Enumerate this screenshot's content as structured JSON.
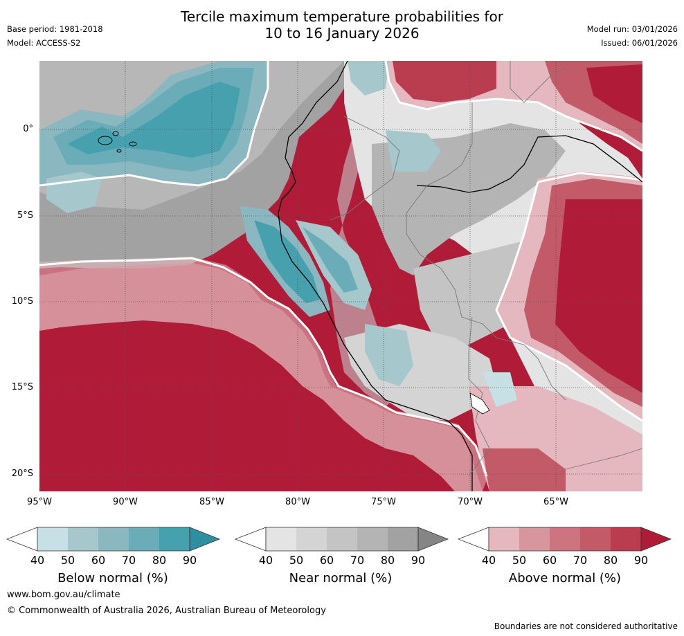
{
  "header": {
    "title_line1": "Tercile maximum temperature probabilities for",
    "title_line2": "10 to 16 January 2026",
    "base_period": "Base period: 1981-2018",
    "model": "Model: ACCESS-S2",
    "model_run": "Model run: 03/01/2026",
    "issued": "Issued: 06/01/2026"
  },
  "axes": {
    "lat_labels": [
      "0°",
      "5°S",
      "10°S",
      "15°S",
      "20°S"
    ],
    "lon_labels": [
      "95°W",
      "90°W",
      "85°W",
      "80°W",
      "75°W",
      "70°W",
      "65°W"
    ]
  },
  "legends": [
    {
      "title": "Below normal (%)",
      "ticks": [
        "40",
        "50",
        "60",
        "70",
        "80",
        "90"
      ],
      "colors": [
        "#c6e0e5",
        "#a6c8cc",
        "#8ab7c0",
        "#6aadb8",
        "#46a0ae",
        "#2f8fa2"
      ]
    },
    {
      "title": "Near normal (%)",
      "ticks": [
        "40",
        "50",
        "60",
        "70",
        "80",
        "90"
      ],
      "colors": [
        "#e4e4e4",
        "#d4d4d4",
        "#c4c4c4",
        "#b4b4b4",
        "#a2a2a2",
        "#858585"
      ]
    },
    {
      "title": "Above normal (%)",
      "ticks": [
        "40",
        "50",
        "60",
        "70",
        "80",
        "90"
      ],
      "colors": [
        "#e4b8be",
        "#d7959e",
        "#cc7580",
        "#c35a67",
        "#b93d4e",
        "#b01c37"
      ]
    }
  ],
  "footer": {
    "website": "www.bom.gov.au/climate",
    "copyright": "© Commonwealth of Australia 2026, Australian Bureau of Meteorology",
    "disclaimer": "Boundaries are not considered authoritative"
  }
}
